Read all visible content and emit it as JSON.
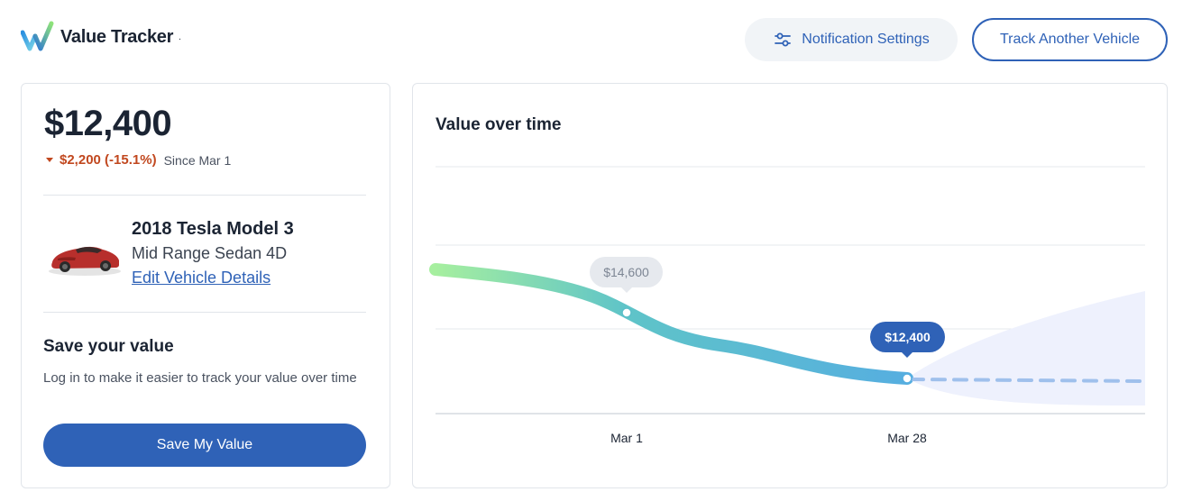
{
  "header": {
    "logo_text": "Value Tracker",
    "logo_tm": ".",
    "notification_label": "Notification Settings",
    "track_label": "Track Another Vehicle"
  },
  "summary": {
    "value": "$12,400",
    "change": "$2,200 (-15.1%)",
    "since": "Since Mar 1"
  },
  "vehicle": {
    "name": "2018 Tesla Model 3",
    "trim": "Mid Range Sedan 4D",
    "edit_label": "Edit Vehicle Details"
  },
  "save": {
    "title": "Save your value",
    "description": "Log in to make it easier to track your value over time",
    "button_label": "Save My Value"
  },
  "colors": {
    "brand": "#2f62b7",
    "down": "#c1481f",
    "line_start": "#a6ef9f",
    "line_end": "#56aee0",
    "forecast": "#9fc0ec"
  },
  "chart_data": {
    "type": "line",
    "title": "Value over time",
    "x_labels": [
      "Mar 1",
      "Mar 28"
    ],
    "points": [
      {
        "label": "Mar 1",
        "value": 14600,
        "display": "$14,600"
      },
      {
        "label": "Mar 28",
        "value": 12400,
        "display": "$12,400"
      }
    ],
    "forecast": "dashed, shaded range",
    "grid": true
  }
}
